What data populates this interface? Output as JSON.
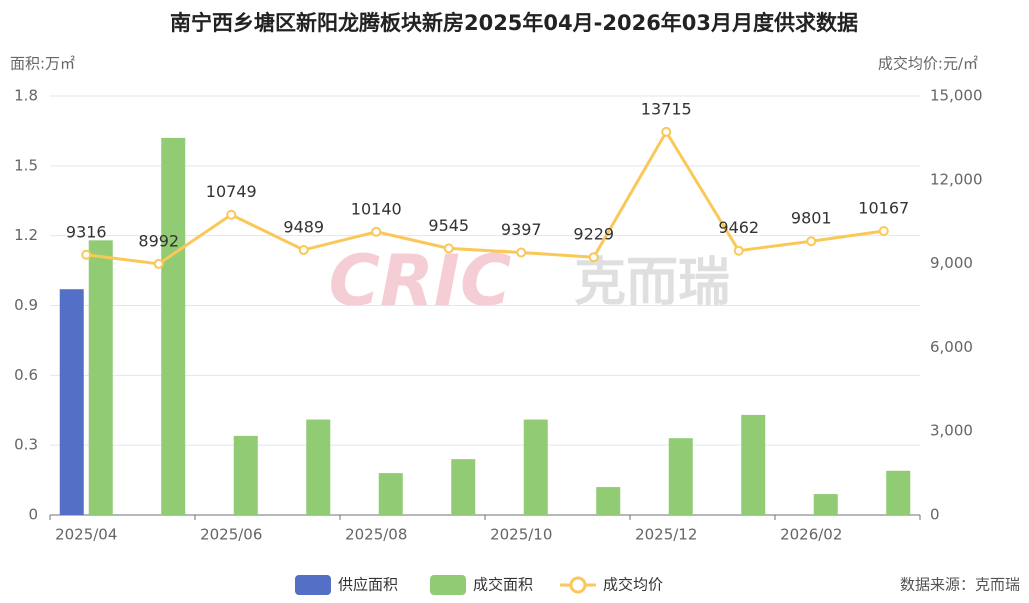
{
  "chart_data": {
    "type": "bar",
    "title": "南宁西乡塘区新阳龙腾板块新房2025年04月-2026年03月月度供求数据",
    "y_label": "面积:万㎡",
    "y2_label": "成交均价:元/㎡",
    "categories": [
      "2025/04",
      null,
      "2025/06",
      null,
      "2025/08",
      null,
      "2025/10",
      null,
      "2025/12",
      null,
      "2026/02",
      null
    ],
    "series": [
      {
        "name": "供应面积",
        "type": "bar",
        "color": "#5470c6",
        "values": [
          0.97,
          null,
          null,
          null,
          null,
          null,
          null,
          null,
          null,
          null,
          null,
          null
        ]
      },
      {
        "name": "成交面积",
        "type": "bar",
        "color": "#91cc75",
        "values": [
          1.18,
          1.62,
          0.34,
          0.41,
          0.18,
          0.24,
          0.41,
          0.12,
          0.33,
          0.43,
          0.09,
          0.19
        ]
      },
      {
        "name": "成交均价",
        "type": "line",
        "axis": "y2",
        "color": "#fac858",
        "values": [
          9316,
          8992,
          10749,
          9489,
          10140,
          9545,
          9397,
          9229,
          13715,
          9462,
          9801,
          10167
        ]
      }
    ],
    "ylim": [
      0,
      1.8
    ],
    "yticks": [
      0,
      0.3,
      0.6,
      0.9,
      1.2,
      1.5,
      1.8
    ],
    "y2lim": [
      0,
      15000
    ],
    "y2ticks": [
      0,
      {
        "value": 3000,
        "label": "3,000"
      },
      {
        "value": 6000,
        "label": "6,000"
      },
      {
        "value": 9000,
        "label": "9,000"
      },
      {
        "value": 12000,
        "label": "12,000"
      },
      {
        "value": 15000,
        "label": "15,000"
      }
    ],
    "grid": true,
    "legend": "bottom",
    "watermark": {
      "logo": "CRIC",
      "name": "克而瑞"
    },
    "source": "数据来源：克而瑞"
  }
}
